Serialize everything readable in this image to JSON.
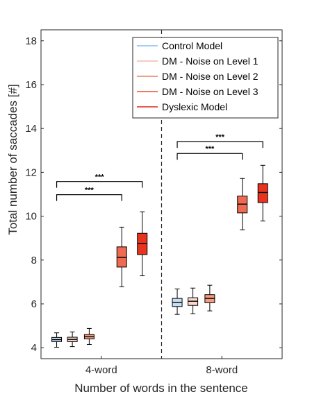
{
  "chart_data": {
    "type": "boxplot",
    "xlabel": "Number of words in the sentence",
    "ylabel": "Total number of saccades [#]",
    "ylim": [
      3.5,
      18.5
    ],
    "yticks": [
      4,
      6,
      8,
      10,
      12,
      14,
      16,
      18
    ],
    "groups": [
      "4-word",
      "8-word"
    ],
    "grid": false,
    "legend_position": "top-right",
    "series": [
      {
        "name": "Control Model",
        "color": "#87bde8",
        "fill": "#c7def5"
      },
      {
        "name": "DM - Noise on Level 1",
        "color": "#f3b9a6",
        "fill": "#fbd8cc"
      },
      {
        "name": "DM - Noise on Level 2",
        "color": "#ea7f62",
        "fill": "#f39c82"
      },
      {
        "name": "DM - Noise on Level 3",
        "color": "#e84e34",
        "fill": "#ee6a52"
      },
      {
        "name": "Dyslexic Model",
        "color": "#e02613",
        "fill": "#e8341f"
      }
    ],
    "boxes": [
      [
        {
          "min": 4.02,
          "q1": 4.28,
          "median": 4.37,
          "q3": 4.47,
          "max": 4.68
        },
        {
          "min": 4.05,
          "q1": 4.28,
          "median": 4.38,
          "q3": 4.48,
          "max": 4.72
        },
        {
          "min": 4.15,
          "q1": 4.4,
          "median": 4.5,
          "q3": 4.6,
          "max": 4.88
        },
        {
          "min": 6.78,
          "q1": 7.68,
          "median": 8.12,
          "q3": 8.6,
          "max": 9.5
        },
        {
          "min": 7.28,
          "q1": 8.25,
          "median": 8.75,
          "q3": 9.22,
          "max": 10.2
        }
      ],
      [
        {
          "min": 5.52,
          "q1": 5.88,
          "median": 6.07,
          "q3": 6.25,
          "max": 6.68
        },
        {
          "min": 5.55,
          "q1": 5.93,
          "median": 6.12,
          "q3": 6.28,
          "max": 6.72
        },
        {
          "min": 5.68,
          "q1": 6.05,
          "median": 6.25,
          "q3": 6.42,
          "max": 6.85
        },
        {
          "min": 9.38,
          "q1": 10.15,
          "median": 10.55,
          "q3": 10.92,
          "max": 11.72
        },
        {
          "min": 9.78,
          "q1": 10.62,
          "median": 11.08,
          "q3": 11.48,
          "max": 12.32
        }
      ]
    ],
    "significance": [
      {
        "group": 0,
        "from": 0,
        "to": 4,
        "label": "***",
        "y": 11.58
      },
      {
        "group": 0,
        "from": 0,
        "to": 3,
        "label": "***",
        "y": 10.98
      },
      {
        "group": 1,
        "from": 0,
        "to": 4,
        "label": "***",
        "y": 13.4
      },
      {
        "group": 1,
        "from": 0,
        "to": 3,
        "label": "***",
        "y": 12.86
      }
    ]
  }
}
